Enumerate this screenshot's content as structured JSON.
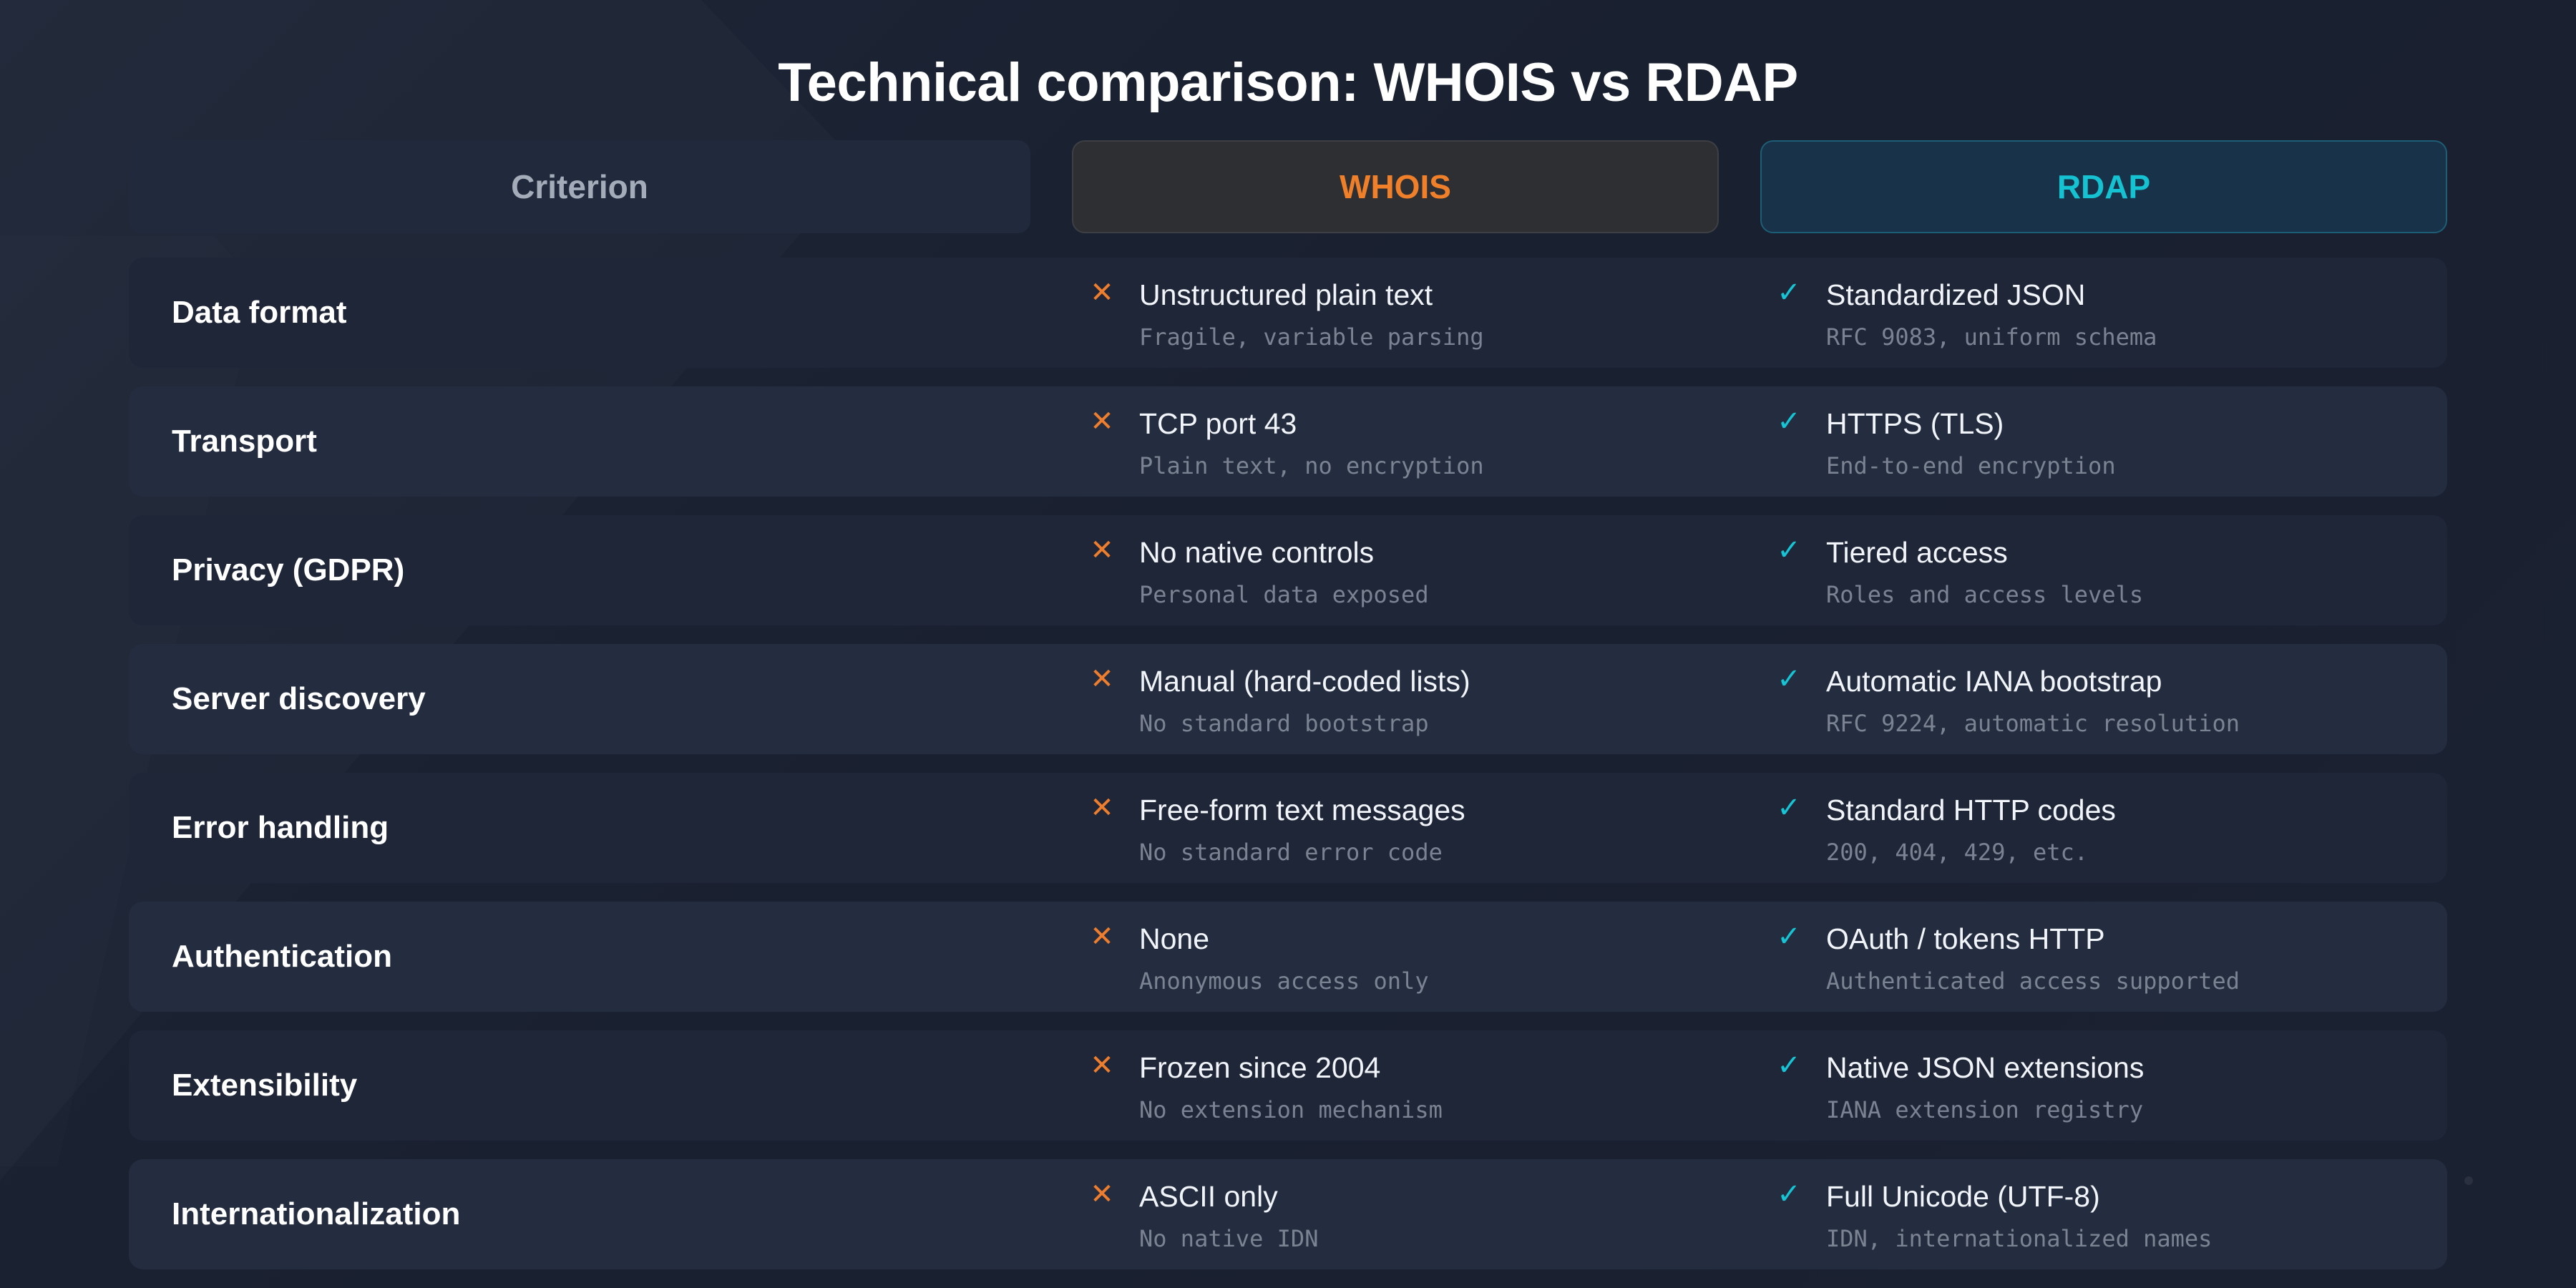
{
  "title": "Technical comparison: WHOIS vs RDAP",
  "header": {
    "criterion": "Criterion",
    "whois": "WHOIS",
    "rdap": "RDAP"
  },
  "marks": {
    "whois": "✕",
    "rdap": "✓"
  },
  "colors": {
    "background": "#1b2233",
    "whois_accent": "#f07f2a",
    "rdap_accent": "#14c2d2",
    "row": "#1f2638",
    "row_alt": "#242d3f"
  },
  "rows": [
    {
      "criterion": "Data format",
      "whois": {
        "main": "Unstructured plain text",
        "sub": "Fragile, variable parsing"
      },
      "rdap": {
        "main": "Standardized JSON",
        "sub": "RFC 9083, uniform schema"
      }
    },
    {
      "criterion": "Transport",
      "whois": {
        "main": "TCP port 43",
        "sub": "Plain text, no encryption"
      },
      "rdap": {
        "main": "HTTPS (TLS)",
        "sub": "End-to-end encryption"
      }
    },
    {
      "criterion": "Privacy (GDPR)",
      "whois": {
        "main": "No native controls",
        "sub": "Personal data exposed"
      },
      "rdap": {
        "main": "Tiered access",
        "sub": "Roles and access levels"
      }
    },
    {
      "criterion": "Server discovery",
      "whois": {
        "main": "Manual (hard-coded lists)",
        "sub": "No standard bootstrap"
      },
      "rdap": {
        "main": "Automatic IANA bootstrap",
        "sub": "RFC 9224, automatic resolution"
      }
    },
    {
      "criterion": "Error handling",
      "whois": {
        "main": "Free-form text messages",
        "sub": "No standard error code"
      },
      "rdap": {
        "main": "Standard HTTP codes",
        "sub": "200, 404, 429, etc."
      }
    },
    {
      "criterion": "Authentication",
      "whois": {
        "main": "None",
        "sub": "Anonymous access only"
      },
      "rdap": {
        "main": "OAuth / tokens HTTP",
        "sub": "Authenticated access supported"
      }
    },
    {
      "criterion": "Extensibility",
      "whois": {
        "main": "Frozen since 2004",
        "sub": "No extension mechanism"
      },
      "rdap": {
        "main": "Native JSON extensions",
        "sub": "IANA extension registry"
      }
    },
    {
      "criterion": "Internationalization",
      "whois": {
        "main": "ASCII only",
        "sub": "No native IDN"
      },
      "rdap": {
        "main": "Full Unicode (UTF-8)",
        "sub": "IDN, internationalized names"
      }
    }
  ]
}
